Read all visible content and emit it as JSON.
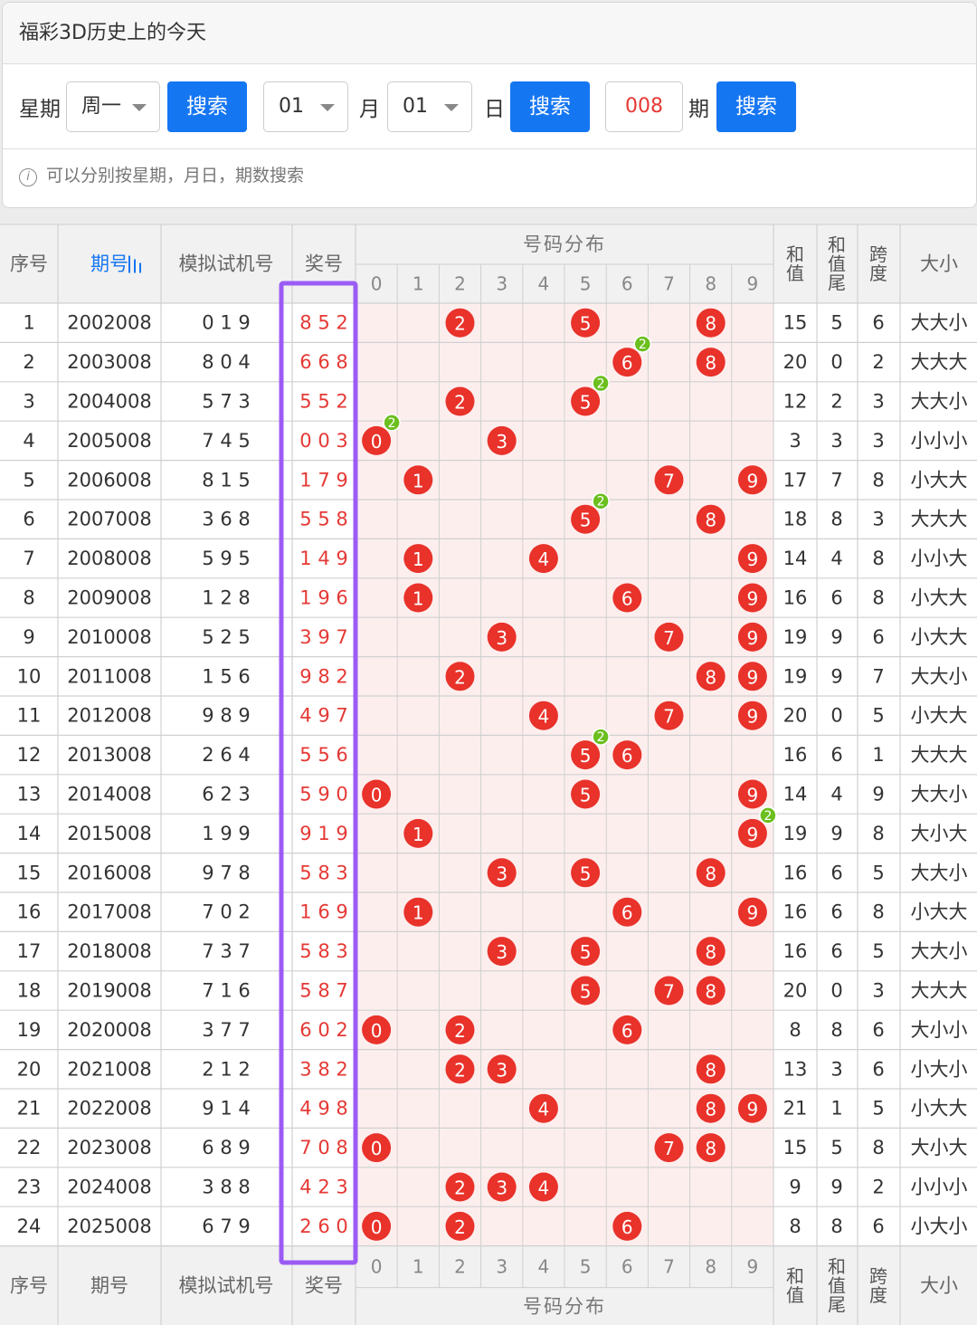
{
  "page": {
    "title": "福彩3D历史上的今天"
  },
  "search": {
    "week_label": "星期",
    "week_value": "周一",
    "search_label": "搜索",
    "month_value": "01",
    "month_label": "月",
    "day_value": "01",
    "day_label": "日",
    "issue_value": "008",
    "issue_label": "期",
    "tip": "可以分别按星期，月日，期数搜索",
    "tip_icon": "info-icon"
  },
  "table": {
    "headers": {
      "seq": "序号",
      "issue": "期号",
      "sim": "模拟试机号",
      "prize": "奖号",
      "dist": "号码分布",
      "sum": "和值",
      "sum_tail": "和值尾",
      "span": "跨度",
      "size": "大小",
      "digits": [
        "0",
        "1",
        "2",
        "3",
        "4",
        "5",
        "6",
        "7",
        "8",
        "9"
      ]
    },
    "rows": [
      {
        "seq": "1",
        "issue": "2002008",
        "sim": "0 1 9",
        "prize": "8 5 2",
        "sum": "15",
        "tail": "5",
        "span": "6",
        "size": "大大小"
      },
      {
        "seq": "2",
        "issue": "2003008",
        "sim": "8 0 4",
        "prize": "6 6 8",
        "sum": "20",
        "tail": "0",
        "span": "2",
        "size": "大大大"
      },
      {
        "seq": "3",
        "issue": "2004008",
        "sim": "5 7 3",
        "prize": "5 5 2",
        "sum": "12",
        "tail": "2",
        "span": "3",
        "size": "大大小"
      },
      {
        "seq": "4",
        "issue": "2005008",
        "sim": "7 4 5",
        "prize": "0 0 3",
        "sum": "3",
        "tail": "3",
        "span": "3",
        "size": "小小小"
      },
      {
        "seq": "5",
        "issue": "2006008",
        "sim": "8 1 5",
        "prize": "1 7 9",
        "sum": "17",
        "tail": "7",
        "span": "8",
        "size": "小大大"
      },
      {
        "seq": "6",
        "issue": "2007008",
        "sim": "3 6 8",
        "prize": "5 5 8",
        "sum": "18",
        "tail": "8",
        "span": "3",
        "size": "大大大"
      },
      {
        "seq": "7",
        "issue": "2008008",
        "sim": "5 9 5",
        "prize": "1 4 9",
        "sum": "14",
        "tail": "4",
        "span": "8",
        "size": "小小大"
      },
      {
        "seq": "8",
        "issue": "2009008",
        "sim": "1 2 8",
        "prize": "1 9 6",
        "sum": "16",
        "tail": "6",
        "span": "8",
        "size": "小大大"
      },
      {
        "seq": "9",
        "issue": "2010008",
        "sim": "5 2 5",
        "prize": "3 9 7",
        "sum": "19",
        "tail": "9",
        "span": "6",
        "size": "小大大"
      },
      {
        "seq": "10",
        "issue": "2011008",
        "sim": "1 5 6",
        "prize": "9 8 2",
        "sum": "19",
        "tail": "9",
        "span": "7",
        "size": "大大小"
      },
      {
        "seq": "11",
        "issue": "2012008",
        "sim": "9 8 9",
        "prize": "4 9 7",
        "sum": "20",
        "tail": "0",
        "span": "5",
        "size": "小大大"
      },
      {
        "seq": "12",
        "issue": "2013008",
        "sim": "2 6 4",
        "prize": "5 5 6",
        "sum": "16",
        "tail": "6",
        "span": "1",
        "size": "大大大"
      },
      {
        "seq": "13",
        "issue": "2014008",
        "sim": "6 2 3",
        "prize": "5 9 0",
        "sum": "14",
        "tail": "4",
        "span": "9",
        "size": "大大小"
      },
      {
        "seq": "14",
        "issue": "2015008",
        "sim": "1 9 9",
        "prize": "9 1 9",
        "sum": "19",
        "tail": "9",
        "span": "8",
        "size": "大小大"
      },
      {
        "seq": "15",
        "issue": "2016008",
        "sim": "9 7 8",
        "prize": "5 8 3",
        "sum": "16",
        "tail": "6",
        "span": "5",
        "size": "大大小"
      },
      {
        "seq": "16",
        "issue": "2017008",
        "sim": "7 0 2",
        "prize": "1 6 9",
        "sum": "16",
        "tail": "6",
        "span": "8",
        "size": "小大大"
      },
      {
        "seq": "17",
        "issue": "2018008",
        "sim": "7 3 7",
        "prize": "5 8 3",
        "sum": "16",
        "tail": "6",
        "span": "5",
        "size": "大大小"
      },
      {
        "seq": "18",
        "issue": "2019008",
        "sim": "7 1 6",
        "prize": "5 8 7",
        "sum": "20",
        "tail": "0",
        "span": "3",
        "size": "大大大"
      },
      {
        "seq": "19",
        "issue": "2020008",
        "sim": "3 7 7",
        "prize": "6 0 2",
        "sum": "8",
        "tail": "8",
        "span": "6",
        "size": "大小小"
      },
      {
        "seq": "20",
        "issue": "2021008",
        "sim": "2 1 2",
        "prize": "3 8 2",
        "sum": "13",
        "tail": "3",
        "span": "6",
        "size": "小大小"
      },
      {
        "seq": "21",
        "issue": "2022008",
        "sim": "9 1 4",
        "prize": "4 9 8",
        "sum": "21",
        "tail": "1",
        "span": "5",
        "size": "小大大"
      },
      {
        "seq": "22",
        "issue": "2023008",
        "sim": "6 8 9",
        "prize": "7 0 8",
        "sum": "15",
        "tail": "5",
        "span": "8",
        "size": "大小大"
      },
      {
        "seq": "23",
        "issue": "2024008",
        "sim": "3 8 8",
        "prize": "4 2 3",
        "sum": "9",
        "tail": "9",
        "span": "2",
        "size": "小小小"
      },
      {
        "seq": "24",
        "issue": "2025008",
        "sim": "6 7 9",
        "prize": "2 6 0",
        "sum": "8",
        "tail": "8",
        "span": "6",
        "size": "小大小"
      }
    ]
  },
  "colors": {
    "accent": "#1576f2",
    "ball": "#e8322a",
    "dup_badge": "#6bbf1e",
    "highlight": "#9b5cf5",
    "prize_text": "#e53935",
    "dist_bg": "#fdeeee"
  }
}
